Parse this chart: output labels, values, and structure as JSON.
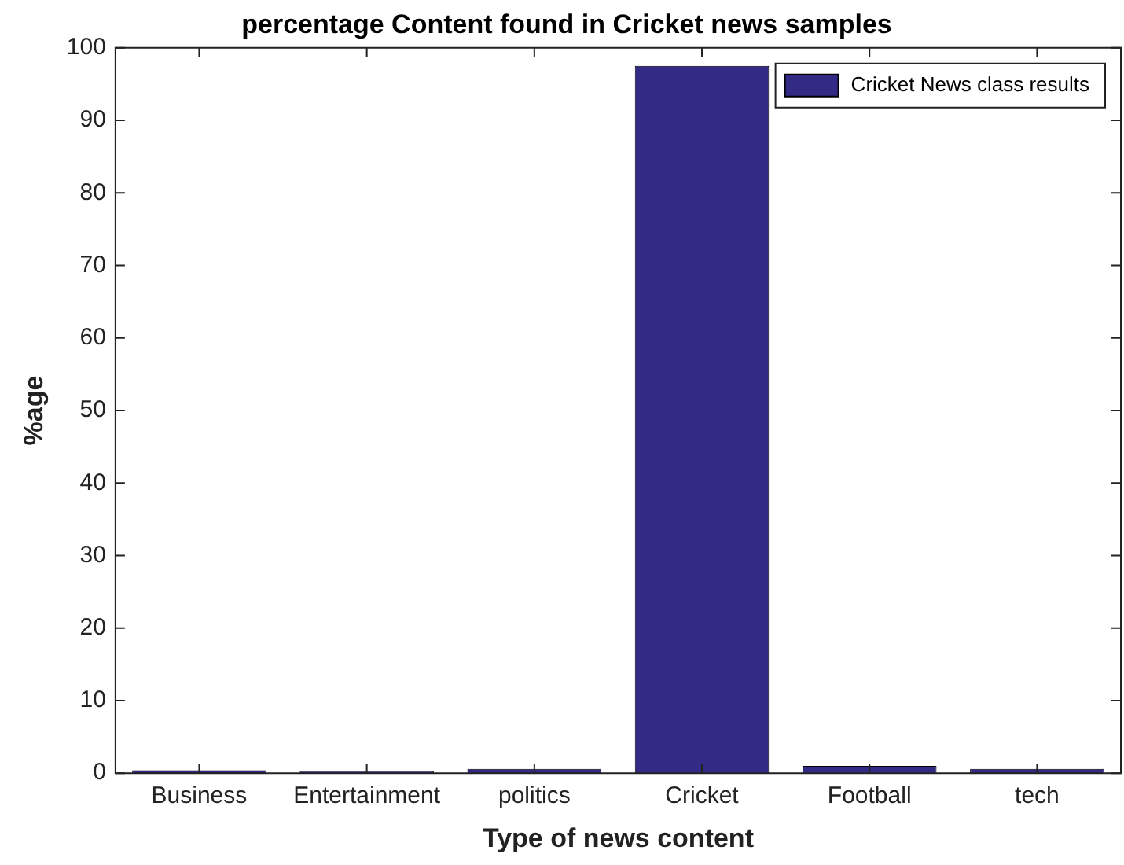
{
  "chart_data": {
    "type": "bar",
    "title": "percentage Content found in Cricket news samples",
    "xlabel": "Type of news content",
    "ylabel": "%age",
    "categories": [
      "Business",
      "Entertainment",
      "politics",
      "Cricket",
      "Football",
      "tech"
    ],
    "series": [
      {
        "name": "Cricket News class results",
        "color": "#332a85",
        "values": [
          0.4,
          0.3,
          0.6,
          97.5,
          1.0,
          0.6
        ]
      }
    ],
    "ylim": [
      0,
      100
    ],
    "yticks": [
      0,
      10,
      20,
      30,
      40,
      50,
      60,
      70,
      80,
      90,
      100
    ],
    "grid": false,
    "legend": "top right"
  }
}
